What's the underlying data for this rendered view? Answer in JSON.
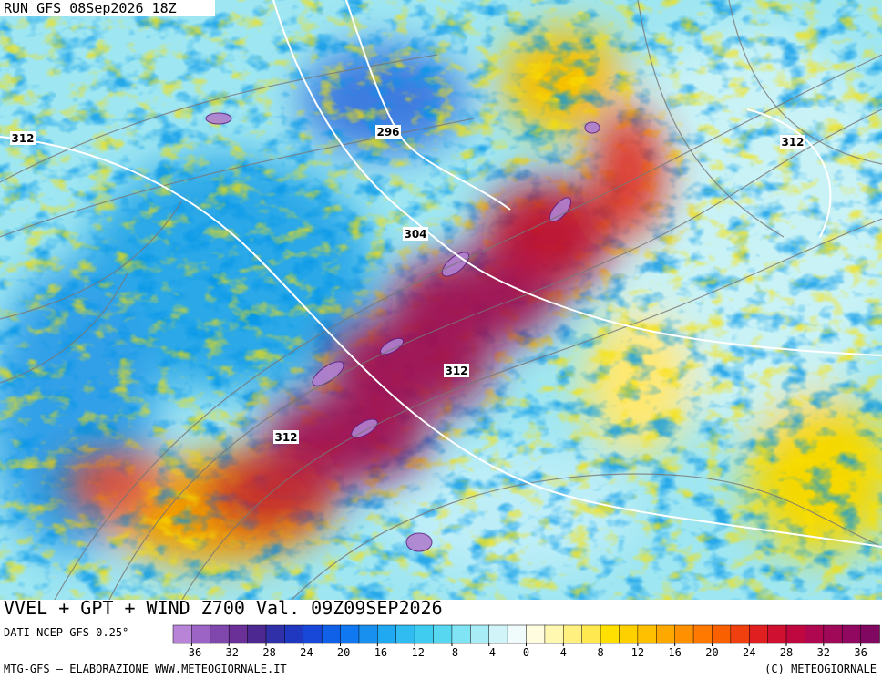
{
  "header": {
    "run": "RUN GFS 08Sep2026 18Z"
  },
  "map": {
    "contour_labels": [
      312,
      296,
      304,
      312,
      312,
      312
    ]
  },
  "title": "VVEL + GPT + WIND Z700 Val. 09Z09SEP2026",
  "source": "DATI NCEP GFS 0.25°",
  "colorbar": {
    "ticks": [
      -36,
      -32,
      -28,
      -24,
      -20,
      -16,
      -12,
      -8,
      -4,
      0,
      4,
      8,
      12,
      16,
      20,
      24,
      28,
      32,
      36
    ]
  },
  "footer": {
    "left": "MTG-GFS — ELABORAZIONE WWW.METEOGIORNALE.IT",
    "right": "(C) METEOGIORNALE"
  }
}
